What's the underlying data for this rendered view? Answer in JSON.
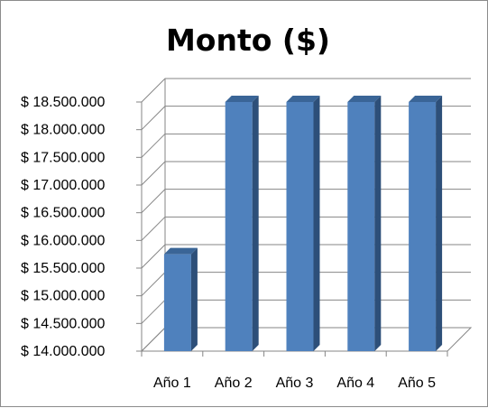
{
  "chart_data": {
    "type": "bar",
    "title": "Monto ($)",
    "xlabel": "",
    "ylabel": "",
    "categories": [
      "Año 1",
      "Año 2",
      "Año 3",
      "Año 4",
      "Año 5"
    ],
    "values": [
      15750000,
      18500000,
      18500000,
      18500000,
      18500000
    ],
    "ylim": [
      14000000,
      18500000
    ],
    "yticks": [
      14000000,
      14500000,
      15000000,
      15500000,
      16000000,
      16500000,
      17000000,
      17500000,
      18000000,
      18500000
    ],
    "ytick_labels": [
      "$ 14.000.000",
      "$ 14.500.000",
      "$ 15.000.000",
      "$ 15.500.000",
      "$ 16.000.000",
      "$ 16.500.000",
      "$ 17.000.000",
      "$ 17.500.000",
      "$ 18.000.000",
      "$ 18.500.000"
    ],
    "grid": true,
    "legend": "none",
    "style": "3d-column",
    "colors": {
      "bar_front": "#4f81bd",
      "bar_top": "#3a6597",
      "bar_side": "#2d4f79",
      "gridline": "#868686"
    }
  }
}
